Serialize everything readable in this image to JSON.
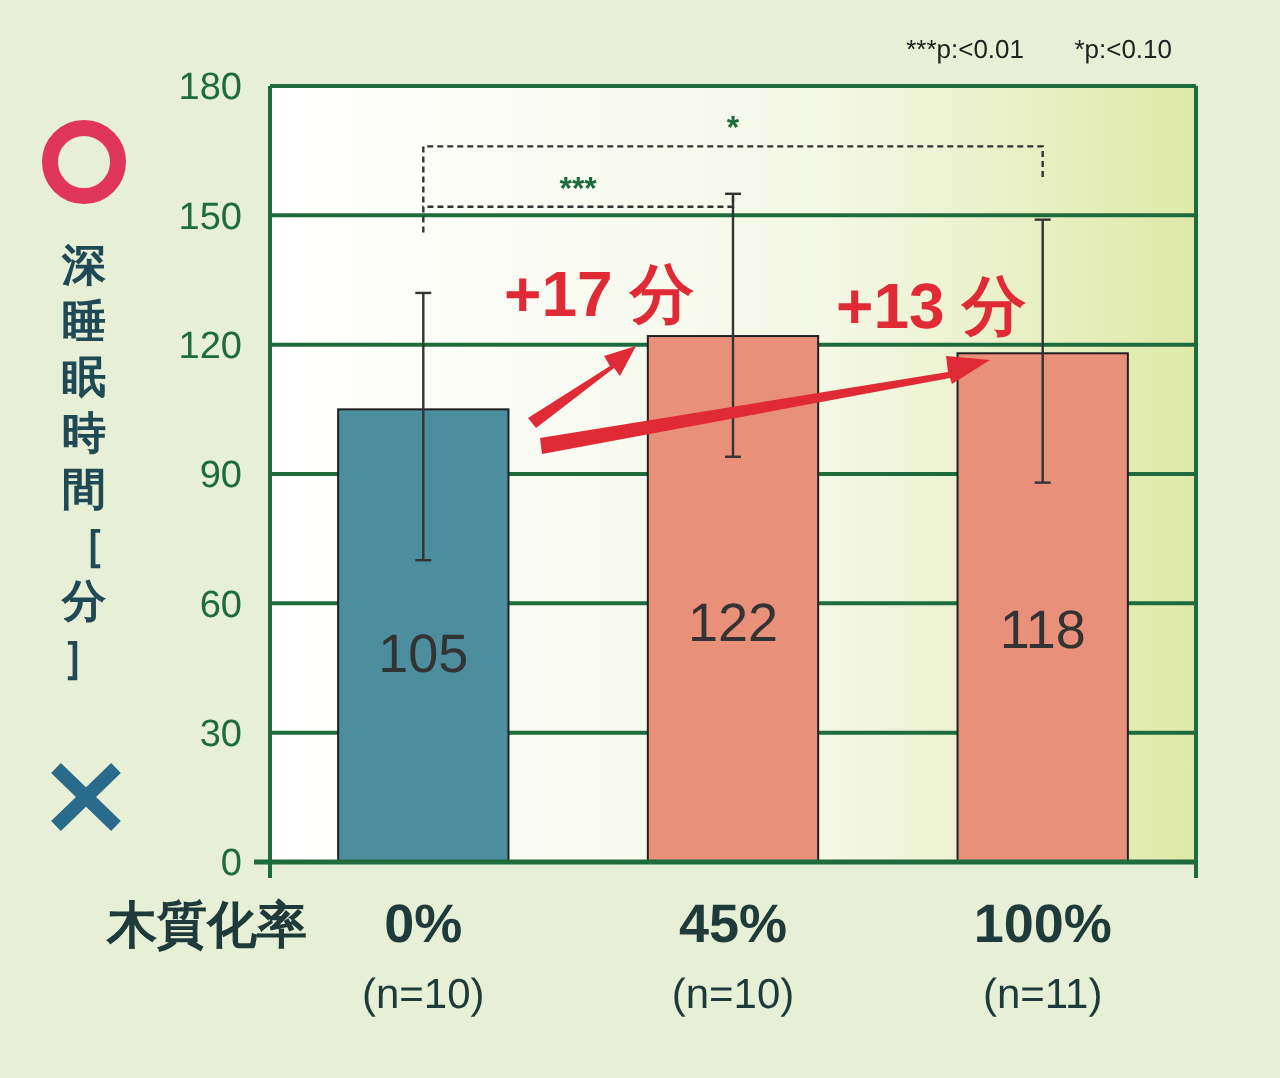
{
  "chart_data": {
    "type": "bar",
    "xlabel": "木質化率",
    "ylabel": "深睡眠時間［分］",
    "categories": [
      "0%\n(n=10)",
      "45%\n(n=10)",
      "100%\n(n=11)"
    ],
    "values": [
      105,
      122,
      118
    ],
    "colors": [
      "#4d8e9e",
      "#e9907a",
      "#e9907a"
    ],
    "errors": [
      [
        70,
        132
      ],
      [
        94,
        155
      ],
      [
        88,
        149
      ]
    ],
    "ylim": [
      0,
      180
    ],
    "yticks": [
      0,
      30,
      60,
      90,
      120,
      150,
      180
    ],
    "grid": "y",
    "data_labels": true,
    "annotations": [
      "***p:<0.01",
      "*p:<0.10",
      "***",
      "*",
      "+17 分",
      "+13 分"
    ]
  }
}
